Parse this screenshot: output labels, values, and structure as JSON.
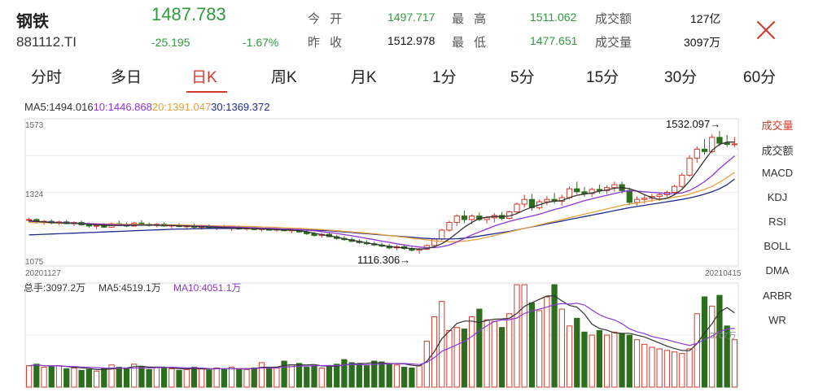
{
  "header": {
    "name": "钢铁",
    "code": "881112.TI",
    "price": "1487.783",
    "change": "-25.195",
    "change_pct": "-1.67%",
    "stats": [
      {
        "label": "今 开",
        "value": "1497.717"
      },
      {
        "label": "昨 收",
        "value": "1512.978"
      },
      {
        "label": "最 高",
        "value": "1511.062"
      },
      {
        "label": "最 低",
        "value": "1477.651"
      },
      {
        "label": "成交额",
        "value": "127亿"
      },
      {
        "label": "成交量",
        "value": "3097万"
      }
    ]
  },
  "tabs": [
    "分时",
    "多日",
    "日K",
    "周K",
    "月K",
    "1分",
    "5分",
    "15分",
    "30分",
    "60分"
  ],
  "active_tab": "日K",
  "ma_legend": [
    {
      "text": "MA5:1494.016",
      "color": "#333333"
    },
    {
      "text": "10:1446.868",
      "color": "#8e35d6"
    },
    {
      "text": "20:1391.047",
      "color": "#e6a23c"
    },
    {
      "text": "30:1369.372",
      "color": "#1f2b8f"
    }
  ],
  "side_menu": [
    "成交量",
    "成交额",
    "MACD",
    "KDJ",
    "RSI",
    "BOLL",
    "DMA",
    "ARBR",
    "WR"
  ],
  "side_active": "成交量",
  "volume_legend": [
    {
      "text": "总手:3097.2万",
      "color": "#333333"
    },
    {
      "text": "MA5:4519.1万",
      "color": "#333333"
    },
    {
      "text": "MA10:4051.1万",
      "color": "#8e35d6"
    }
  ],
  "colors": {
    "up": "#d23a2a",
    "down": "#2c6e1e",
    "ma5": "#333333",
    "ma10": "#8e35d6",
    "ma20": "#e6a23c",
    "ma30": "#1f2b8f"
  },
  "chart_data": {
    "type": "candlestick",
    "y_ticks": [
      "1573",
      "1324",
      "1075"
    ],
    "ylim": [
      1075,
      1573
    ],
    "date_start": "20201127",
    "date_end": "20210415",
    "max_label": "1532.097→",
    "min_label": "1116.306→",
    "volume_axis_label": "3707万",
    "ohlc": [
      [
        1230,
        1238,
        1222,
        1232
      ],
      [
        1232,
        1236,
        1218,
        1222
      ],
      [
        1222,
        1230,
        1214,
        1226
      ],
      [
        1226,
        1232,
        1216,
        1220
      ],
      [
        1220,
        1228,
        1214,
        1224
      ],
      [
        1224,
        1230,
        1216,
        1218
      ],
      [
        1218,
        1226,
        1210,
        1222
      ],
      [
        1222,
        1228,
        1212,
        1214
      ],
      [
        1214,
        1222,
        1204,
        1210
      ],
      [
        1210,
        1216,
        1200,
        1212
      ],
      [
        1212,
        1220,
        1204,
        1206
      ],
      [
        1206,
        1222,
        1204,
        1218
      ],
      [
        1218,
        1228,
        1212,
        1214
      ],
      [
        1214,
        1222,
        1206,
        1210
      ],
      [
        1210,
        1224,
        1208,
        1220
      ],
      [
        1220,
        1230,
        1214,
        1216
      ],
      [
        1216,
        1222,
        1208,
        1212
      ],
      [
        1212,
        1220,
        1206,
        1216
      ],
      [
        1216,
        1222,
        1208,
        1210
      ],
      [
        1210,
        1216,
        1202,
        1214
      ],
      [
        1214,
        1220,
        1206,
        1208
      ],
      [
        1208,
        1214,
        1200,
        1210
      ],
      [
        1210,
        1218,
        1202,
        1206
      ],
      [
        1206,
        1212,
        1198,
        1208
      ],
      [
        1208,
        1216,
        1202,
        1204
      ],
      [
        1204,
        1212,
        1196,
        1208
      ],
      [
        1208,
        1214,
        1200,
        1202
      ],
      [
        1202,
        1210,
        1194,
        1206
      ],
      [
        1206,
        1212,
        1198,
        1200
      ],
      [
        1200,
        1208,
        1194,
        1204
      ],
      [
        1204,
        1210,
        1196,
        1198
      ],
      [
        1198,
        1206,
        1192,
        1202
      ],
      [
        1202,
        1208,
        1194,
        1196
      ],
      [
        1196,
        1204,
        1190,
        1200
      ],
      [
        1200,
        1206,
        1192,
        1194
      ],
      [
        1194,
        1202,
        1186,
        1198
      ],
      [
        1198,
        1204,
        1188,
        1190
      ],
      [
        1190,
        1196,
        1180,
        1184
      ],
      [
        1184,
        1190,
        1174,
        1178
      ],
      [
        1178,
        1186,
        1170,
        1182
      ],
      [
        1182,
        1188,
        1172,
        1174
      ],
      [
        1174,
        1180,
        1164,
        1168
      ],
      [
        1168,
        1176,
        1160,
        1164
      ],
      [
        1164,
        1172,
        1156,
        1158
      ],
      [
        1158,
        1166,
        1150,
        1154
      ],
      [
        1154,
        1162,
        1146,
        1150
      ],
      [
        1150,
        1158,
        1142,
        1146
      ],
      [
        1146,
        1154,
        1138,
        1142
      ],
      [
        1142,
        1150,
        1132,
        1136
      ],
      [
        1136,
        1146,
        1128,
        1140
      ],
      [
        1140,
        1148,
        1130,
        1134
      ],
      [
        1134,
        1140,
        1124,
        1128
      ],
      [
        1128,
        1136,
        1116,
        1132
      ],
      [
        1132,
        1148,
        1128,
        1144
      ],
      [
        1144,
        1170,
        1140,
        1166
      ],
      [
        1166,
        1200,
        1162,
        1196
      ],
      [
        1196,
        1228,
        1190,
        1222
      ],
      [
        1222,
        1250,
        1210,
        1244
      ],
      [
        1244,
        1262,
        1220,
        1232
      ],
      [
        1232,
        1250,
        1216,
        1244
      ],
      [
        1244,
        1256,
        1226,
        1232
      ],
      [
        1232,
        1244,
        1218,
        1238
      ],
      [
        1238,
        1254,
        1222,
        1246
      ],
      [
        1246,
        1258,
        1230,
        1236
      ],
      [
        1236,
        1262,
        1232,
        1258
      ],
      [
        1258,
        1290,
        1252,
        1284
      ],
      [
        1284,
        1316,
        1272,
        1300
      ],
      [
        1300,
        1318,
        1262,
        1272
      ],
      [
        1272,
        1300,
        1266,
        1292
      ],
      [
        1292,
        1312,
        1280,
        1300
      ],
      [
        1300,
        1322,
        1286,
        1294
      ],
      [
        1294,
        1316,
        1280,
        1306
      ],
      [
        1306,
        1344,
        1300,
        1336
      ],
      [
        1336,
        1360,
        1318,
        1326
      ],
      [
        1326,
        1342,
        1310,
        1320
      ],
      [
        1320,
        1340,
        1308,
        1334
      ],
      [
        1334,
        1350,
        1320,
        1330
      ],
      [
        1330,
        1348,
        1318,
        1340
      ],
      [
        1340,
        1360,
        1326,
        1350
      ],
      [
        1350,
        1360,
        1320,
        1330
      ],
      [
        1330,
        1340,
        1280,
        1290
      ],
      [
        1290,
        1310,
        1280,
        1300
      ],
      [
        1300,
        1314,
        1286,
        1304
      ],
      [
        1304,
        1320,
        1292,
        1310
      ],
      [
        1310,
        1322,
        1296,
        1316
      ],
      [
        1316,
        1330,
        1304,
        1324
      ],
      [
        1324,
        1350,
        1316,
        1344
      ],
      [
        1344,
        1390,
        1338,
        1382
      ],
      [
        1382,
        1450,
        1376,
        1440
      ],
      [
        1440,
        1480,
        1424,
        1470
      ],
      [
        1470,
        1504,
        1452,
        1462
      ],
      [
        1462,
        1520,
        1456,
        1510
      ],
      [
        1510,
        1532,
        1480,
        1490
      ],
      [
        1490,
        1518,
        1478,
        1486
      ],
      [
        1486,
        1511,
        1477,
        1488
      ]
    ],
    "ma": {
      "ma5": [
        1228,
        1226,
        1224,
        1222,
        1221,
        1220,
        1219,
        1218,
        1216,
        1214,
        1213,
        1212,
        1212,
        1212,
        1213,
        1213,
        1213,
        1213,
        1212,
        1212,
        1211,
        1210,
        1209,
        1208,
        1207,
        1206,
        1205,
        1204,
        1203,
        1202,
        1201,
        1200,
        1199,
        1198,
        1197,
        1196,
        1194,
        1191,
        1186,
        1181,
        1177,
        1172,
        1167,
        1162,
        1158,
        1153,
        1149,
        1145,
        1141,
        1138,
        1136,
        1134,
        1132,
        1134,
        1140,
        1150,
        1166,
        1186,
        1206,
        1222,
        1236,
        1240,
        1242,
        1242,
        1244,
        1252,
        1264,
        1274,
        1282,
        1290,
        1294,
        1296,
        1306,
        1314,
        1318,
        1322,
        1328,
        1332,
        1338,
        1340,
        1336,
        1328,
        1316,
        1306,
        1300,
        1304,
        1316,
        1334,
        1362,
        1396,
        1432,
        1466,
        1486,
        1494,
        1494
      ],
      "ma10": [
        1226,
        1225,
        1224,
        1223,
        1222,
        1221,
        1220,
        1219,
        1218,
        1217,
        1216,
        1215,
        1214,
        1214,
        1214,
        1213,
        1213,
        1213,
        1212,
        1212,
        1211,
        1211,
        1210,
        1210,
        1209,
        1208,
        1207,
        1207,
        1206,
        1205,
        1204,
        1203,
        1202,
        1201,
        1200,
        1199,
        1198,
        1196,
        1194,
        1191,
        1188,
        1185,
        1181,
        1177,
        1173,
        1168,
        1164,
        1159,
        1155,
        1150,
        1146,
        1142,
        1139,
        1137,
        1137,
        1140,
        1146,
        1156,
        1168,
        1180,
        1190,
        1200,
        1210,
        1218,
        1226,
        1232,
        1238,
        1244,
        1250,
        1258,
        1266,
        1272,
        1280,
        1288,
        1296,
        1302,
        1308,
        1314,
        1320,
        1326,
        1330,
        1328,
        1326,
        1324,
        1322,
        1320,
        1320,
        1322,
        1330,
        1344,
        1360,
        1380,
        1404,
        1426,
        1447
      ],
      "ma20": [
        1222,
        1222,
        1221,
        1221,
        1220,
        1220,
        1219,
        1219,
        1218,
        1218,
        1217,
        1217,
        1216,
        1216,
        1216,
        1215,
        1215,
        1214,
        1214,
        1214,
        1213,
        1213,
        1212,
        1212,
        1211,
        1211,
        1210,
        1210,
        1209,
        1209,
        1208,
        1207,
        1206,
        1205,
        1204,
        1203,
        1202,
        1201,
        1199,
        1198,
        1196,
        1194,
        1192,
        1190,
        1188,
        1186,
        1184,
        1181,
        1178,
        1175,
        1172,
        1169,
        1166,
        1163,
        1160,
        1158,
        1157,
        1157,
        1159,
        1162,
        1166,
        1172,
        1178,
        1184,
        1190,
        1196,
        1202,
        1208,
        1214,
        1220,
        1226,
        1232,
        1238,
        1244,
        1250,
        1256,
        1262,
        1268,
        1274,
        1280,
        1284,
        1288,
        1292,
        1296,
        1300,
        1304,
        1308,
        1312,
        1318,
        1326,
        1334,
        1344,
        1358,
        1374,
        1391
      ],
      "ma30": [
        1180,
        1181,
        1182,
        1183,
        1184,
        1185,
        1186,
        1187,
        1188,
        1189,
        1190,
        1191,
        1192,
        1193,
        1194,
        1195,
        1196,
        1197,
        1198,
        1199,
        1200,
        1200,
        1201,
        1201,
        1202,
        1202,
        1202,
        1202,
        1202,
        1202,
        1202,
        1201,
        1201,
        1200,
        1200,
        1199,
        1198,
        1197,
        1196,
        1195,
        1194,
        1192,
        1190,
        1188,
        1186,
        1184,
        1182,
        1180,
        1178,
        1176,
        1174,
        1172,
        1170,
        1168,
        1167,
        1166,
        1166,
        1167,
        1169,
        1172,
        1176,
        1180,
        1184,
        1188,
        1192,
        1197,
        1202,
        1207,
        1212,
        1217,
        1222,
        1227,
        1232,
        1237,
        1242,
        1247,
        1252,
        1257,
        1262,
        1267,
        1272,
        1276,
        1280,
        1284,
        1288,
        1292,
        1296,
        1300,
        1305,
        1311,
        1318,
        1326,
        1336,
        1350,
        1369
      ]
    },
    "volume": [
      1400,
      1500,
      1300,
      1350,
      1400,
      1200,
      1250,
      1100,
      1150,
      1050,
      1200,
      1450,
      1300,
      1250,
      1500,
      1350,
      1150,
      1300,
      1250,
      1200,
      1100,
      1150,
      1300,
      1200,
      1100,
      1250,
      1150,
      1300,
      1200,
      1150,
      1250,
      1600,
      1300,
      1250,
      1700,
      1450,
      1550,
      1300,
      1400,
      1250,
      1350,
      1500,
      1800,
      1600,
      1500,
      1400,
      1700,
      1650,
      1500,
      1450,
      1300,
      1250,
      1400,
      3000,
      4600,
      5600,
      3700,
      3900,
      3800,
      4600,
      5100,
      4400,
      4300,
      3900,
      4800,
      6700,
      6700,
      5500,
      5000,
      5900,
      6700,
      5100,
      4000,
      4500,
      3600,
      3400,
      3700,
      3400,
      3600,
      3500,
      3400,
      3100,
      2800,
      2600,
      2500,
      2400,
      2300,
      2200,
      2500,
      4800,
      5900,
      5300,
      6000,
      4000,
      3100
    ]
  }
}
